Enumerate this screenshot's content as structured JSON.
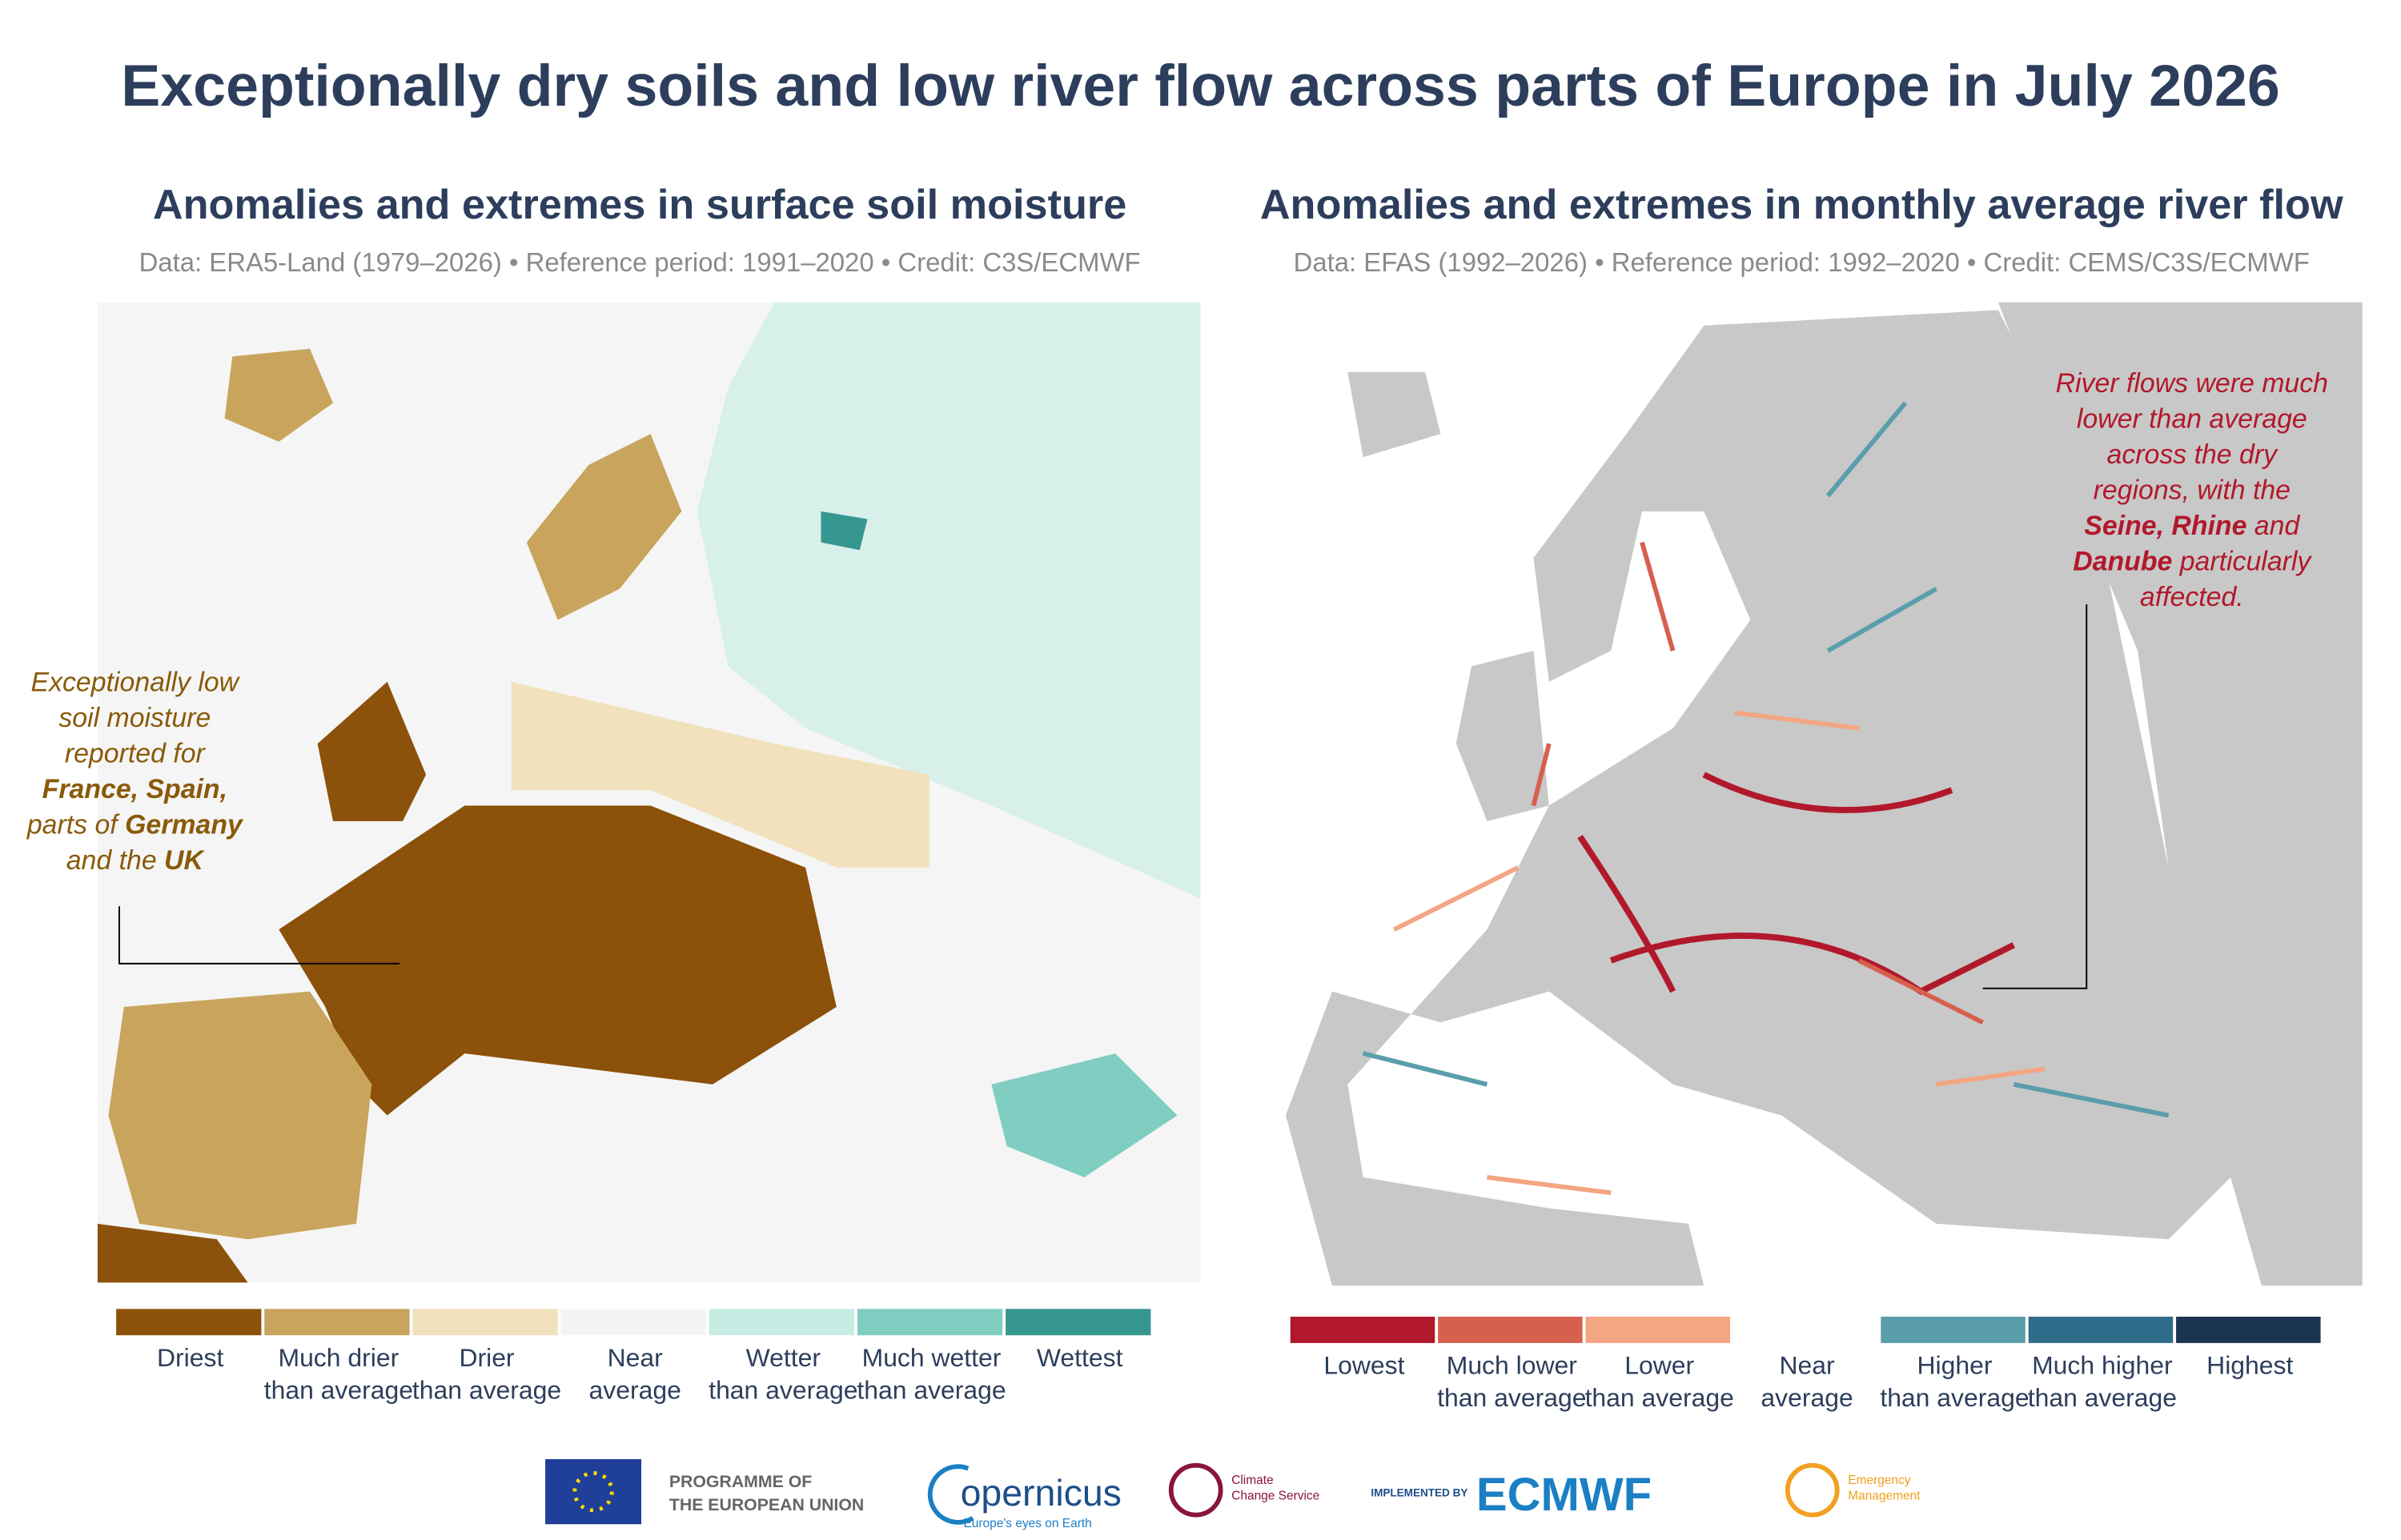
{
  "header": {
    "title": "Exceptionally dry soils and low river flow across parts of Europe in July 2026"
  },
  "panels": [
    {
      "title": "Anomalies and extremes in surface soil moisture",
      "source": "Data: ERA5-Land (1979–2026) • Reference period: 1991–2020 • Credit: C3S/ECMWF",
      "annotation": {
        "color": "#8a5a0a",
        "lines": [
          [
            {
              "text": "Exceptionally low"
            }
          ],
          [
            {
              "text": "soil moisture"
            }
          ],
          [
            {
              "text": "reported for"
            }
          ],
          [
            {
              "text": "France, Spain,",
              "bold": true
            }
          ],
          [
            {
              "text": "parts of "
            },
            {
              "text": "Germany",
              "bold": true
            }
          ],
          [
            {
              "text": "and the "
            },
            {
              "text": "UK",
              "bold": true
            }
          ]
        ]
      },
      "legend": [
        {
          "label": [
            "Driest"
          ],
          "color": "#8c510a"
        },
        {
          "label": [
            "Much drier",
            "than average"
          ],
          "color": "#c9a45c"
        },
        {
          "label": [
            "Drier",
            "than average"
          ],
          "color": "#f1e2bd"
        },
        {
          "label": [
            "Near",
            "average"
          ],
          "color": "#f4f4f4"
        },
        {
          "label": [
            "Wetter",
            "than average"
          ],
          "color": "#c7ece3"
        },
        {
          "label": [
            "Much wetter",
            "than average"
          ],
          "color": "#80cdc1"
        },
        {
          "label": [
            "Wettest"
          ],
          "color": "#35978f"
        }
      ]
    },
    {
      "title": "Anomalies and extremes in monthly average river flow",
      "source": "Data: EFAS (1992–2026) • Reference period: 1992–2020 • Credit: CEMS/C3S/ECMWF",
      "annotation": {
        "color": "#b2182b",
        "lines": [
          [
            {
              "text": "River flows were much"
            }
          ],
          [
            {
              "text": "lower than average"
            }
          ],
          [
            {
              "text": "across the dry"
            }
          ],
          [
            {
              "text": "regions, with the"
            }
          ],
          [
            {
              "text": "Seine, Rhine",
              "bold": true
            },
            {
              "text": " and"
            }
          ],
          [
            {
              "text": "Danube",
              "bold": true
            },
            {
              "text": " particularly"
            }
          ],
          [
            {
              "text": "affected."
            }
          ]
        ]
      },
      "legend": [
        {
          "label": [
            "Lowest"
          ],
          "color": "#b2182b"
        },
        {
          "label": [
            "Much lower",
            "than average"
          ],
          "color": "#d6604d"
        },
        {
          "label": [
            "Lower",
            "than average"
          ],
          "color": "#f4a582"
        },
        {
          "label": [
            "Near",
            "average"
          ]
        },
        {
          "label": [
            "Higher",
            "than average"
          ],
          "color": "#5a9eab"
        },
        {
          "label": [
            "Much higher",
            "than average"
          ],
          "color": "#2f6c8a"
        },
        {
          "label": [
            "Highest"
          ],
          "color": "#1c3550"
        }
      ]
    }
  ],
  "logos": {
    "eu": [
      "PROGRAMME OF",
      "THE EUROPEAN UNION"
    ],
    "copernicus": "opernicus",
    "copernicus_tag": "Europe's eyes on Earth",
    "c3s": [
      "Climate",
      "Change Service"
    ],
    "implemented": "IMPLEMENTED BY",
    "ecmwf": "ECMWF",
    "cems": [
      "Emergency",
      "Management"
    ]
  }
}
